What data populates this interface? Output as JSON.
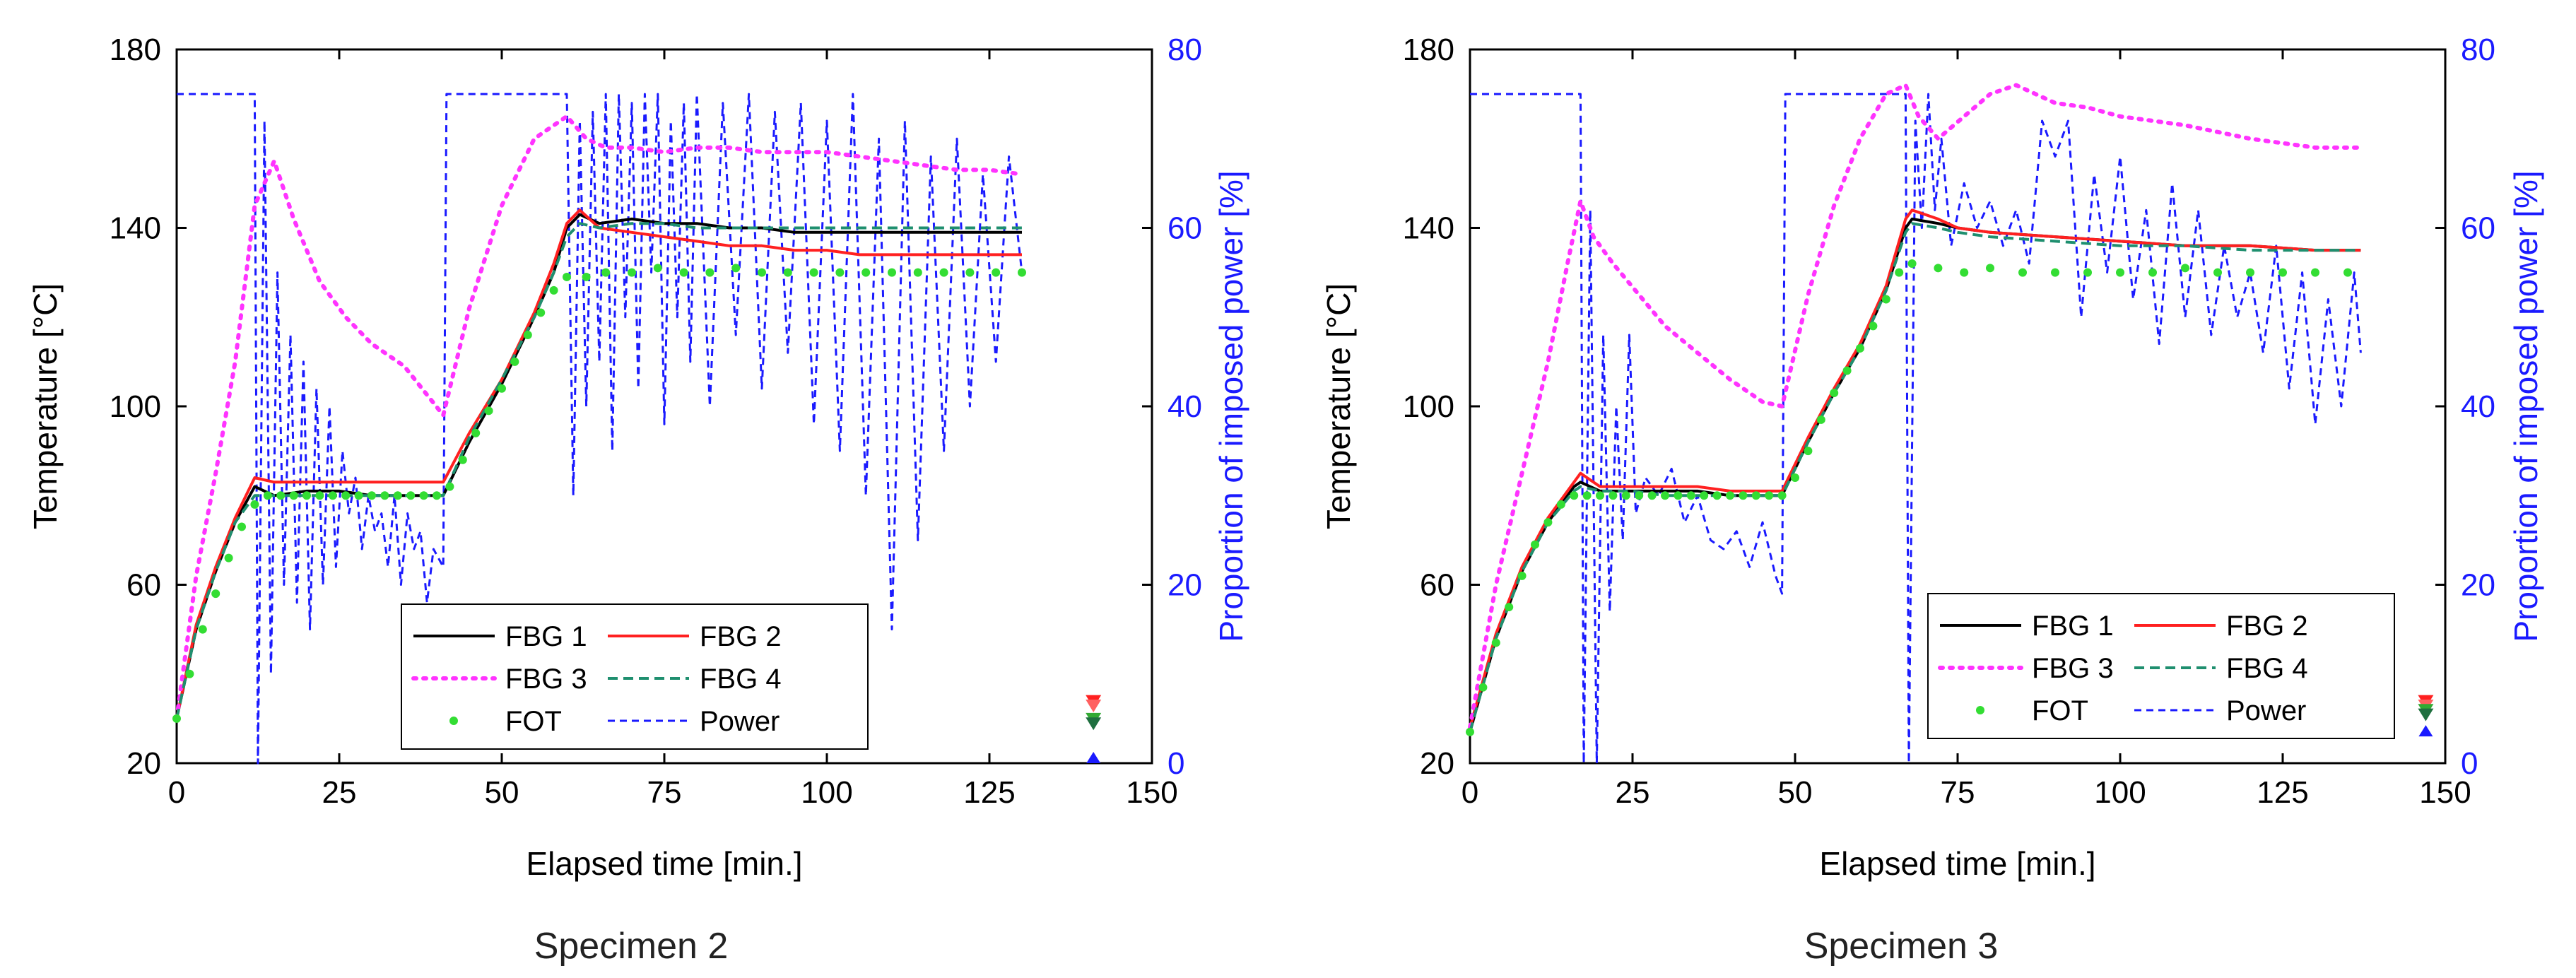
{
  "chart_data": [
    {
      "type": "line",
      "title": "Specimen 2",
      "xlabel": "Elapsed time [min.]",
      "ylabel": "Temperature [°C]",
      "y2label": "Proportion of imposed power [%]",
      "xlim": [
        0,
        150
      ],
      "ylim": [
        20,
        180
      ],
      "y2lim": [
        0,
        80
      ],
      "xticks": [
        "0",
        "25",
        "50",
        "75",
        "100",
        "125",
        "150"
      ],
      "yticks": [
        "20",
        "60",
        "100",
        "140",
        "180"
      ],
      "y2ticks": [
        "0",
        "20",
        "40",
        "60",
        "80"
      ],
      "legend_position": "lower-right",
      "series": [
        {
          "name": "FBG 1",
          "axis": "left",
          "style": "solid",
          "color": "#000000",
          "x": [
            0,
            3,
            6,
            9,
            12,
            15,
            20,
            25,
            30,
            35,
            41,
            45,
            50,
            55,
            58,
            60,
            62,
            65,
            70,
            75,
            80,
            85,
            90,
            95,
            100,
            105,
            110,
            115,
            120,
            125,
            130
          ],
          "y": [
            30,
            50,
            63,
            74,
            82,
            80,
            81,
            81,
            80,
            80,
            80,
            92,
            105,
            120,
            130,
            140,
            143,
            141,
            142,
            141,
            141,
            140,
            140,
            139,
            139,
            139,
            139,
            139,
            139,
            139,
            139
          ]
        },
        {
          "name": "FBG 2",
          "axis": "left",
          "style": "solid",
          "color": "#ff2020",
          "x": [
            0,
            3,
            6,
            9,
            12,
            15,
            20,
            25,
            30,
            35,
            41,
            45,
            50,
            55,
            58,
            60,
            62,
            65,
            70,
            75,
            80,
            85,
            90,
            95,
            100,
            105,
            110,
            115,
            120,
            125,
            130
          ],
          "y": [
            30,
            51,
            64,
            75,
            84,
            83,
            83,
            83,
            83,
            83,
            83,
            94,
            106,
            121,
            132,
            141,
            144,
            140,
            139,
            138,
            137,
            136,
            136,
            135,
            135,
            134,
            134,
            134,
            134,
            134,
            134
          ]
        },
        {
          "name": "FBG 3",
          "axis": "left",
          "style": "dotted",
          "color": "#ff33ff",
          "x": [
            0,
            3,
            6,
            9,
            12,
            15,
            18,
            22,
            26,
            30,
            35,
            41,
            45,
            50,
            55,
            60,
            63,
            66,
            70,
            75,
            80,
            85,
            90,
            95,
            100,
            105,
            110,
            115,
            120,
            125,
            130
          ],
          "y": [
            30,
            62,
            85,
            110,
            145,
            155,
            142,
            128,
            120,
            114,
            109,
            98,
            122,
            145,
            160,
            165,
            160,
            158,
            158,
            157,
            158,
            158,
            157,
            157,
            157,
            156,
            155,
            154,
            153,
            153,
            152
          ]
        },
        {
          "name": "FBG 4",
          "axis": "left",
          "style": "dashed",
          "color": "#1f8f6f",
          "x": [
            0,
            3,
            6,
            9,
            12,
            15,
            20,
            25,
            30,
            35,
            41,
            45,
            50,
            55,
            58,
            60,
            62,
            65,
            70,
            75,
            80,
            85,
            90,
            95,
            100,
            105,
            110,
            115,
            120,
            125,
            130
          ],
          "y": [
            30,
            50,
            63,
            74,
            80,
            80,
            80,
            80,
            80,
            80,
            80,
            93,
            106,
            120,
            130,
            138,
            141,
            140,
            141,
            141,
            140,
            140,
            140,
            140,
            140,
            140,
            140,
            140,
            140,
            140,
            140
          ]
        },
        {
          "name": "FOT",
          "axis": "left",
          "style": "markers",
          "color": "#33dd33",
          "x": [
            0,
            2,
            4,
            6,
            8,
            10,
            12,
            14,
            16,
            18,
            20,
            22,
            24,
            26,
            28,
            30,
            32,
            34,
            36,
            38,
            40,
            42,
            44,
            46,
            48,
            50,
            52,
            54,
            56,
            58,
            60,
            63,
            66,
            70,
            74,
            78,
            82,
            86,
            90,
            94,
            98,
            102,
            106,
            110,
            114,
            118,
            122,
            126,
            130
          ],
          "y": [
            30,
            40,
            50,
            58,
            66,
            73,
            78,
            80,
            80,
            80,
            80,
            80,
            80,
            80,
            80,
            80,
            80,
            80,
            80,
            80,
            80,
            82,
            88,
            94,
            99,
            104,
            110,
            116,
            121,
            126,
            129,
            129,
            130,
            130,
            131,
            130,
            130,
            131,
            130,
            130,
            130,
            130,
            130,
            130,
            130,
            130,
            130,
            130,
            130
          ]
        },
        {
          "name": "Power",
          "axis": "right",
          "style": "dashed",
          "color": "#1a1aff",
          "x": [
            0,
            12,
            12.5,
            13.5,
            14.5,
            15.5,
            16.5,
            17.5,
            18.5,
            19.5,
            20.5,
            21.5,
            22.5,
            23.5,
            24.5,
            25.5,
            26.5,
            27.5,
            28.5,
            29.5,
            30.5,
            31.5,
            32.5,
            33.5,
            34.5,
            35.5,
            36.5,
            37.5,
            38.5,
            39.5,
            41,
            41.5,
            60,
            61,
            62,
            63,
            64,
            65,
            66,
            67,
            68,
            69,
            70,
            71,
            72,
            73,
            74,
            75,
            76,
            77,
            78,
            79,
            80,
            82,
            84,
            86,
            88,
            90,
            92,
            94,
            96,
            98,
            100,
            102,
            104,
            106,
            108,
            110,
            112,
            114,
            116,
            118,
            120,
            122,
            124,
            126,
            128,
            130
          ],
          "y": [
            75,
            75,
            0,
            72,
            10,
            55,
            20,
            48,
            18,
            45,
            15,
            42,
            20,
            40,
            22,
            35,
            28,
            32,
            24,
            30,
            26,
            28,
            22,
            30,
            20,
            28,
            24,
            26,
            18,
            24,
            22,
            75,
            75,
            30,
            72,
            40,
            73,
            45,
            75,
            35,
            75,
            50,
            74,
            42,
            75,
            55,
            75,
            38,
            72,
            50,
            74,
            45,
            75,
            40,
            74,
            48,
            75,
            42,
            73,
            46,
            74,
            38,
            72,
            35,
            75,
            30,
            70,
            15,
            72,
            25,
            68,
            35,
            70,
            40,
            66,
            45,
            68,
            55
          ]
        }
      ],
      "end_markers": {
        "temperatures": [
          34,
          33,
          30,
          29
        ],
        "power": 0,
        "time": 141
      }
    },
    {
      "type": "line",
      "title": "Specimen 3",
      "xlabel": "Elapsed time [min.]",
      "ylabel": "Temperature [°C]",
      "y2label": "Proportion of imposed power [%]",
      "xlim": [
        0,
        150
      ],
      "ylim": [
        20,
        180
      ],
      "y2lim": [
        0,
        80
      ],
      "xticks": [
        "0",
        "25",
        "50",
        "75",
        "100",
        "125",
        "150"
      ],
      "yticks": [
        "20",
        "60",
        "100",
        "140",
        "180"
      ],
      "y2ticks": [
        "0",
        "20",
        "40",
        "60",
        "80"
      ],
      "legend_position": "lower-right",
      "series": [
        {
          "name": "FBG 1",
          "axis": "left",
          "style": "solid",
          "color": "#000000",
          "x": [
            0,
            4,
            8,
            12,
            16,
            17,
            20,
            25,
            30,
            35,
            40,
            45,
            48,
            52,
            56,
            60,
            64,
            67,
            68,
            72,
            75,
            80,
            90,
            100,
            110,
            120,
            130,
            137
          ],
          "y": [
            27,
            48,
            63,
            74,
            82,
            83,
            81,
            81,
            81,
            81,
            80,
            80,
            80,
            92,
            103,
            113,
            126,
            140,
            142,
            141,
            140,
            139,
            138,
            137,
            136,
            136,
            135,
            135
          ]
        },
        {
          "name": "FBG 2",
          "axis": "left",
          "style": "solid",
          "color": "#ff2020",
          "x": [
            0,
            4,
            8,
            12,
            16,
            17,
            20,
            25,
            30,
            35,
            40,
            45,
            48,
            52,
            56,
            60,
            64,
            67,
            68,
            72,
            75,
            80,
            90,
            100,
            110,
            120,
            130,
            137
          ],
          "y": [
            28,
            49,
            64,
            75,
            83,
            85,
            82,
            82,
            82,
            82,
            81,
            81,
            81,
            93,
            104,
            114,
            127,
            142,
            144,
            142,
            140,
            139,
            138,
            137,
            136,
            136,
            135,
            135
          ]
        },
        {
          "name": "FBG 3",
          "axis": "left",
          "style": "dotted",
          "color": "#ff33ff",
          "x": [
            0,
            4,
            8,
            12,
            15,
            17,
            19,
            22,
            26,
            30,
            35,
            40,
            45,
            48,
            52,
            56,
            60,
            64,
            67,
            69,
            72,
            76,
            80,
            84,
            90,
            95,
            100,
            110,
            120,
            130,
            137
          ],
          "y": [
            28,
            60,
            85,
            110,
            132,
            146,
            138,
            132,
            125,
            118,
            112,
            106,
            101,
            100,
            125,
            145,
            160,
            170,
            172,
            165,
            160,
            165,
            170,
            172,
            168,
            167,
            165,
            163,
            160,
            158,
            158
          ]
        },
        {
          "name": "FBG 4",
          "axis": "left",
          "style": "dashed",
          "color": "#1f8f6f",
          "x": [
            0,
            4,
            8,
            12,
            16,
            17,
            20,
            25,
            30,
            35,
            40,
            45,
            48,
            52,
            56,
            60,
            64,
            67,
            68,
            72,
            75,
            80,
            90,
            100,
            110,
            120,
            130,
            137
          ],
          "y": [
            27,
            48,
            63,
            74,
            81,
            82,
            81,
            81,
            80,
            80,
            80,
            80,
            80,
            92,
            103,
            113,
            126,
            139,
            141,
            140,
            139,
            138,
            137,
            136,
            136,
            135,
            135,
            135
          ]
        },
        {
          "name": "FOT",
          "axis": "left",
          "style": "markers",
          "color": "#33dd33",
          "x": [
            0,
            2,
            4,
            6,
            8,
            10,
            12,
            14,
            16,
            18,
            20,
            22,
            24,
            26,
            28,
            30,
            32,
            34,
            36,
            38,
            40,
            42,
            44,
            46,
            48,
            50,
            52,
            54,
            56,
            58,
            60,
            62,
            64,
            66,
            68,
            72,
            76,
            80,
            85,
            90,
            95,
            100,
            105,
            110,
            115,
            120,
            125,
            130,
            135
          ],
          "y": [
            27,
            37,
            47,
            55,
            62,
            69,
            74,
            78,
            80,
            80,
            80,
            80,
            80,
            80,
            80,
            80,
            80,
            80,
            80,
            80,
            80,
            80,
            80,
            80,
            80,
            84,
            90,
            97,
            103,
            108,
            113,
            118,
            124,
            130,
            132,
            131,
            130,
            131,
            130,
            130,
            130,
            130,
            130,
            131,
            130,
            130,
            130,
            130,
            130
          ]
        },
        {
          "name": "Power",
          "axis": "right",
          "style": "dashed",
          "color": "#1a1aff",
          "x": [
            0,
            17,
            17.5,
            18.5,
            19.5,
            20.5,
            21.5,
            22.5,
            23.5,
            24.5,
            25.5,
            27,
            29,
            31,
            33,
            35,
            37,
            39,
            41,
            43,
            45,
            47,
            48,
            48.5,
            67,
            67.5,
            68.5,
            69.5,
            70.5,
            71.5,
            72.5,
            74,
            76,
            78,
            80,
            82,
            84,
            86,
            88,
            90,
            92,
            94,
            96,
            98,
            100,
            102,
            104,
            106,
            108,
            110,
            112,
            114,
            116,
            118,
            120,
            122,
            124,
            126,
            128,
            130,
            132,
            134,
            136,
            137
          ],
          "y": [
            75,
            75,
            0,
            62,
            0,
            48,
            17,
            40,
            25,
            48,
            28,
            32,
            30,
            33,
            27,
            30,
            25,
            24,
            26,
            22,
            27,
            21,
            19,
            75,
            75,
            0,
            72,
            60,
            75,
            62,
            70,
            58,
            65,
            60,
            63,
            58,
            62,
            56,
            72,
            68,
            72,
            50,
            66,
            55,
            68,
            52,
            62,
            47,
            65,
            50,
            62,
            48,
            58,
            50,
            55,
            46,
            58,
            42,
            55,
            38,
            52,
            40,
            55,
            46
          ]
        }
      ],
      "end_markers": {
        "temperatures": [
          34,
          33,
          32,
          31
        ],
        "power": 3,
        "time": 147
      }
    }
  ],
  "legend_labels": {
    "fbg1": "FBG 1",
    "fbg2": "FBG 2",
    "fbg3": "FBG 3",
    "fbg4": "FBG 4",
    "fot": "FOT",
    "power": "Power"
  }
}
